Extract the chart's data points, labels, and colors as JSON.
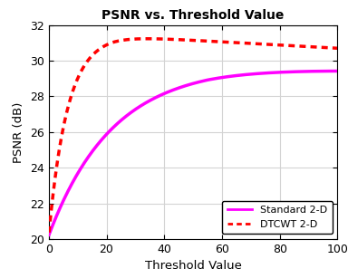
{
  "title": "PSNR vs. Threshold Value",
  "xlabel": "Threshold Value",
  "ylabel": "PSNR (dB)",
  "xlim": [
    0,
    100
  ],
  "ylim": [
    20,
    32
  ],
  "yticks": [
    20,
    22,
    24,
    26,
    28,
    30,
    32
  ],
  "xticks": [
    0,
    20,
    40,
    60,
    80,
    100
  ],
  "standard_color": "#FF00FF",
  "dtcwt_color": "#FF0000",
  "standard_label": "Standard 2-D",
  "dtcwt_label": "DTCWT 2-D",
  "background_color": "#ffffff",
  "grid_color": "#d3d3d3",
  "standard_linewidth": 2.5,
  "dtcwt_linewidth": 2.5
}
